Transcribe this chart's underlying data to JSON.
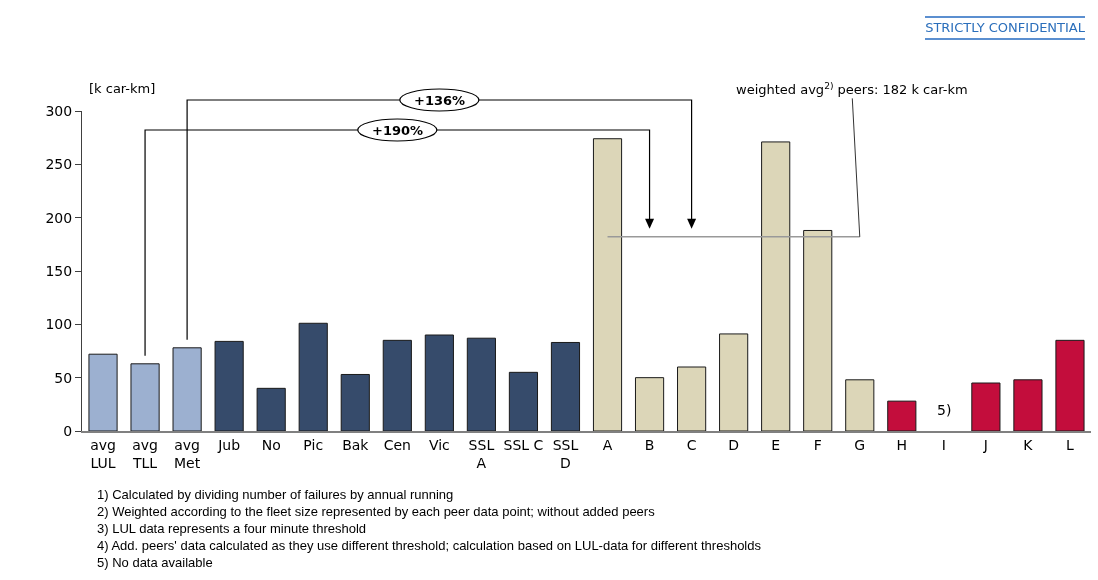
{
  "chart_data": {
    "type": "bar",
    "ylabel": "[k car-km]",
    "categories": [
      "avg\nLUL",
      "avg\nTLL",
      "avg\nMet",
      "Jub",
      "No",
      "Pic",
      "Bak",
      "Cen",
      "Vic",
      "SSL\nA",
      "SSL C",
      "SSL\nD",
      "A",
      "B",
      "C",
      "D",
      "E",
      "F",
      "G",
      "H",
      "I",
      "J",
      "K",
      "L"
    ],
    "values": [
      72,
      63,
      78,
      84,
      40,
      101,
      53,
      85,
      90,
      87,
      55,
      83,
      274,
      50,
      60,
      91,
      271,
      188,
      48,
      28,
      null,
      45,
      48,
      85
    ],
    "colors": [
      "#9cb0d0",
      "#9cb0d0",
      "#9cb0d0",
      "#364b6b",
      "#364b6b",
      "#364b6b",
      "#364b6b",
      "#364b6b",
      "#364b6b",
      "#364b6b",
      "#364b6b",
      "#364b6b",
      "#dcd6b8",
      "#dcd6b8",
      "#dcd6b8",
      "#dcd6b8",
      "#dcd6b8",
      "#dcd6b8",
      "#dcd6b8",
      "#c30d3c",
      "#c30d3c",
      "#c30d3c",
      "#c30d3c",
      "#c30d3c"
    ],
    "ylim": [
      0,
      300
    ],
    "yticks": [
      0,
      50,
      100,
      150,
      200,
      250,
      300
    ],
    "ref_lines": [
      {
        "axis": "y",
        "value": 182,
        "label": "weighted avg$^{2)}$ peers: 182 k car-km",
        "color": "#999999"
      }
    ],
    "annotations": [
      "STRICTLY CONFIDENTIAL",
      "+136%",
      "+190%",
      "5)",
      "1) Calculated by dividing number of failures by annual running",
      "2) Weighted according to the fleet size represented by each peer data point; without added peers",
      "3) LUL data represents a four minute threshold",
      "4) Add. peers' data calculated as they use different threshold; calculation based on LUL-data for different thresholds",
      "5) No data available"
    ]
  }
}
